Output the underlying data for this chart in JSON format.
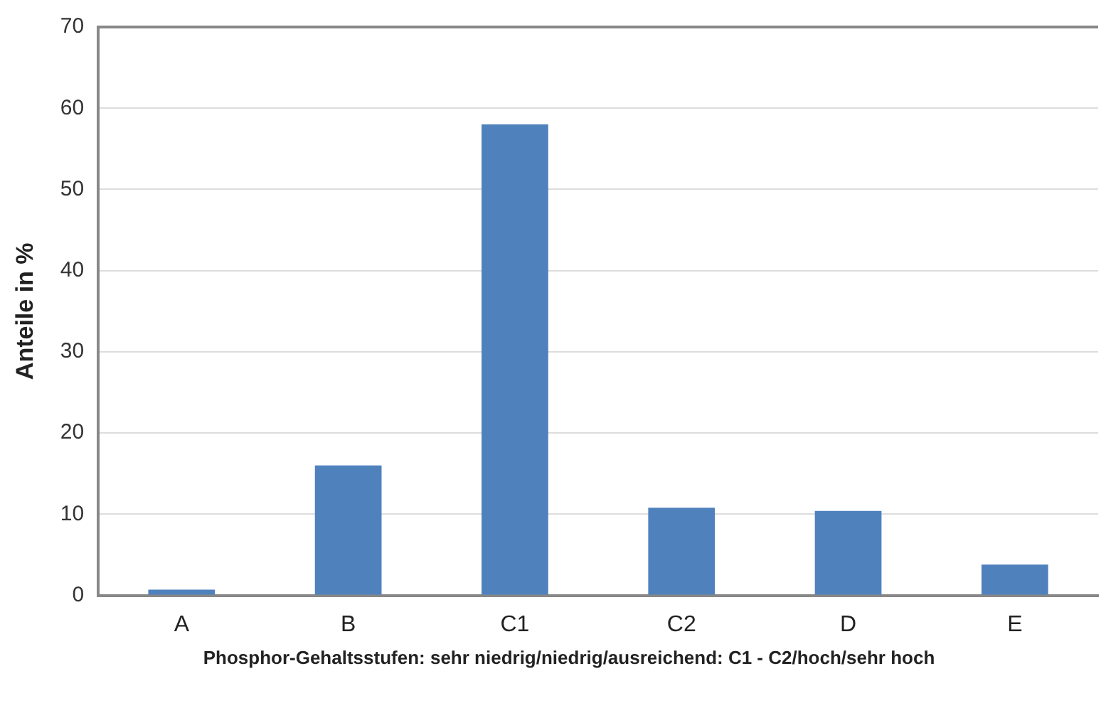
{
  "chart_data": {
    "type": "bar",
    "xlabel": "Phosphor-Gehaltsstufen: sehr niedrig/niedrig/ausreichend: C1 - C2/hoch/sehr hoch",
    "ylabel": "Anteile in %",
    "categories": [
      "A",
      "B",
      "C1",
      "C2",
      "D",
      "E"
    ],
    "values": [
      0.7,
      16,
      58,
      10.8,
      10.4,
      3.8
    ],
    "color": "#4f81bd",
    "ylim": [
      0,
      70
    ],
    "yticks": [
      0,
      10,
      20,
      30,
      40,
      50,
      60,
      70
    ],
    "grid": "y",
    "legend": false
  }
}
